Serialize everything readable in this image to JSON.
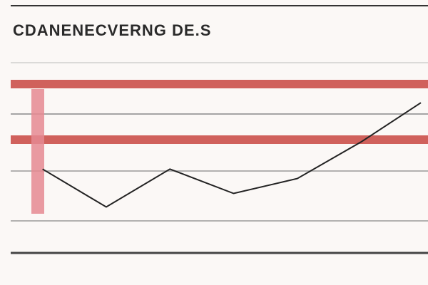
{
  "chart_data": {
    "type": "line",
    "title": "CDANENECVERNG DE.S",
    "categories": [
      null,
      null,
      null,
      null,
      null,
      null,
      null
    ],
    "series": [
      {
        "color": "#222222",
        "values": [
          33,
          5,
          33,
          15,
          26,
          53,
          82
        ]
      }
    ],
    "ylim": [
      0,
      100
    ]
  }
}
